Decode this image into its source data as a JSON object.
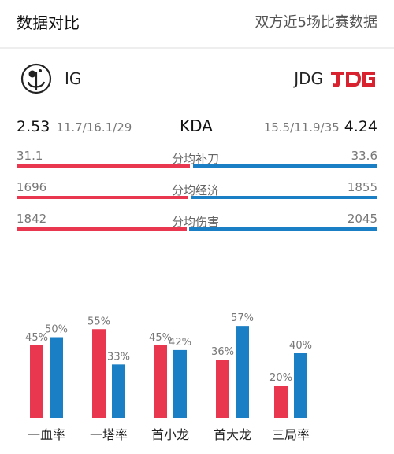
{
  "header": {
    "title": "数据对比",
    "subtitle": "双方近5场比赛数据"
  },
  "teams": {
    "left": {
      "name": "IG",
      "logo_icon": "ig-logo-icon"
    },
    "right": {
      "name": "JDG",
      "logo_icon": "jdg-logo-icon"
    }
  },
  "kda": {
    "label": "KDA",
    "left_ratio": "2.53",
    "left_detail": "11.7/16.1/29",
    "right_ratio": "4.24",
    "right_detail": "15.5/11.9/35"
  },
  "stats": [
    {
      "label": "分均补刀",
      "left": "31.1",
      "right": "33.6"
    },
    {
      "label": "分均经济",
      "left": "1696",
      "right": "1855"
    },
    {
      "label": "分均伤害",
      "left": "1842",
      "right": "2045"
    }
  ],
  "colors": {
    "left": "#e8374e",
    "right": "#1a7fc4"
  },
  "chart_data": {
    "type": "bar",
    "categories": [
      "一血率",
      "一塔率",
      "首小龙",
      "首大龙",
      "三局率"
    ],
    "series": [
      {
        "values": [
          45,
          55,
          45,
          36,
          20
        ],
        "labels": [
          "45%",
          "55%",
          "45%",
          "36%",
          "20%"
        ]
      },
      {
        "values": [
          50,
          33,
          42,
          57,
          40
        ],
        "labels": [
          "50%",
          "33%",
          "42%",
          "57%",
          "40%"
        ]
      }
    ]
  }
}
